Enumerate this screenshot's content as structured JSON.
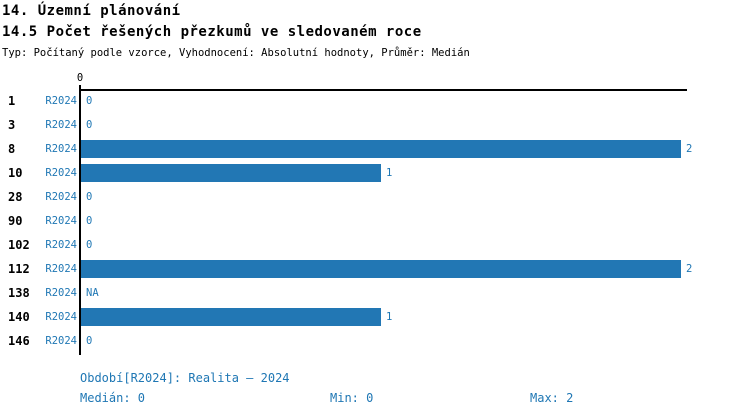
{
  "header": {
    "title": "14. Územní plánování",
    "subtitle": "14.5 Počet řešených přezkumů ve sledovaném roce",
    "meta": "Typ: Počítaný podle vzorce, Vyhodnocení: Absolutní hodnoty, Průměr: Medián"
  },
  "axis": {
    "zero_label": "0"
  },
  "colors": {
    "bar": "#2277B4",
    "blue_text": "#1F77B4",
    "axis": "#000000"
  },
  "chart_data": {
    "type": "bar",
    "orientation": "horizontal",
    "title": "14.5 Počet řešených přezkumů ve sledovaném roce",
    "categories": [
      "1",
      "3",
      "8",
      "10",
      "28",
      "90",
      "102",
      "112",
      "138",
      "140",
      "146"
    ],
    "series": [
      {
        "name": "R2024",
        "values": [
          0,
          0,
          2,
          1,
          0,
          0,
          0,
          2,
          null,
          1,
          0
        ],
        "value_labels": [
          "0",
          "0",
          "2",
          "1",
          "0",
          "0",
          "0",
          "2",
          "NA",
          "1",
          "0"
        ]
      }
    ],
    "xlim": [
      0,
      2
    ],
    "x_tick_labels": [
      "0"
    ],
    "grid": false,
    "legend_position": "none"
  },
  "footer": {
    "period": "Období[R2024]: Realita – 2024",
    "median": "Medián: 0",
    "min": "Min: 0",
    "max": "Max: 2"
  }
}
